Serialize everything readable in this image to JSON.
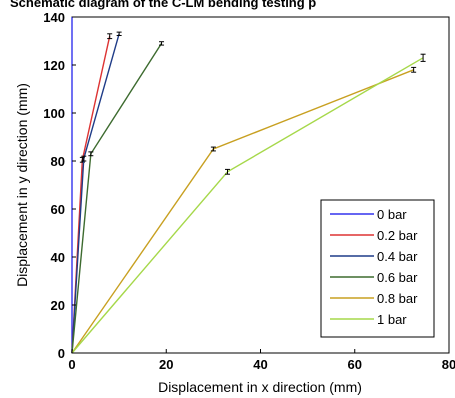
{
  "chart_data": {
    "type": "line",
    "title": "Schematic diagram of the C-LM bending testing p",
    "xlabel": "Displacement in x direction (mm)",
    "ylabel": "Displacement in y direction (mm)",
    "xlim": [
      0,
      80
    ],
    "ylim": [
      0,
      140
    ],
    "xticks": [
      "0",
      "20",
      "40",
      "60",
      "80"
    ],
    "yticks": [
      "0",
      "20",
      "40",
      "60",
      "80",
      "100",
      "120",
      "140"
    ],
    "grid": false,
    "legend_position": "bottom-right",
    "series": [
      {
        "name": "0 bar",
        "color": "#3333ee",
        "x": [
          0,
          0,
          0
        ],
        "y": [
          0,
          80,
          140
        ],
        "yerr": [
          0,
          0,
          0
        ]
      },
      {
        "name": "0.2 bar",
        "color": "#dd3333",
        "x": [
          0,
          2.2,
          8
        ],
        "y": [
          0,
          80.5,
          132
        ],
        "yerr": [
          0,
          1,
          1
        ]
      },
      {
        "name": "0.4 bar",
        "color": "#1f3c88",
        "x": [
          0,
          2.5,
          10
        ],
        "y": [
          0,
          81,
          133
        ],
        "yerr": [
          0,
          1,
          0.7
        ]
      },
      {
        "name": "0.6 bar",
        "color": "#3d6b2f",
        "x": [
          0,
          4,
          19
        ],
        "y": [
          0,
          83,
          129
        ],
        "yerr": [
          0,
          0.8,
          0.7
        ]
      },
      {
        "name": "0.8 bar",
        "color": "#c8a021",
        "x": [
          0,
          30,
          72.5
        ],
        "y": [
          0,
          85,
          118
        ],
        "yerr": [
          0,
          0.8,
          1
        ]
      },
      {
        "name": "1 bar",
        "color": "#a6d84a",
        "x": [
          0,
          33,
          74.5
        ],
        "y": [
          0,
          75.5,
          123
        ],
        "yerr": [
          0,
          1,
          1.5
        ]
      }
    ]
  }
}
